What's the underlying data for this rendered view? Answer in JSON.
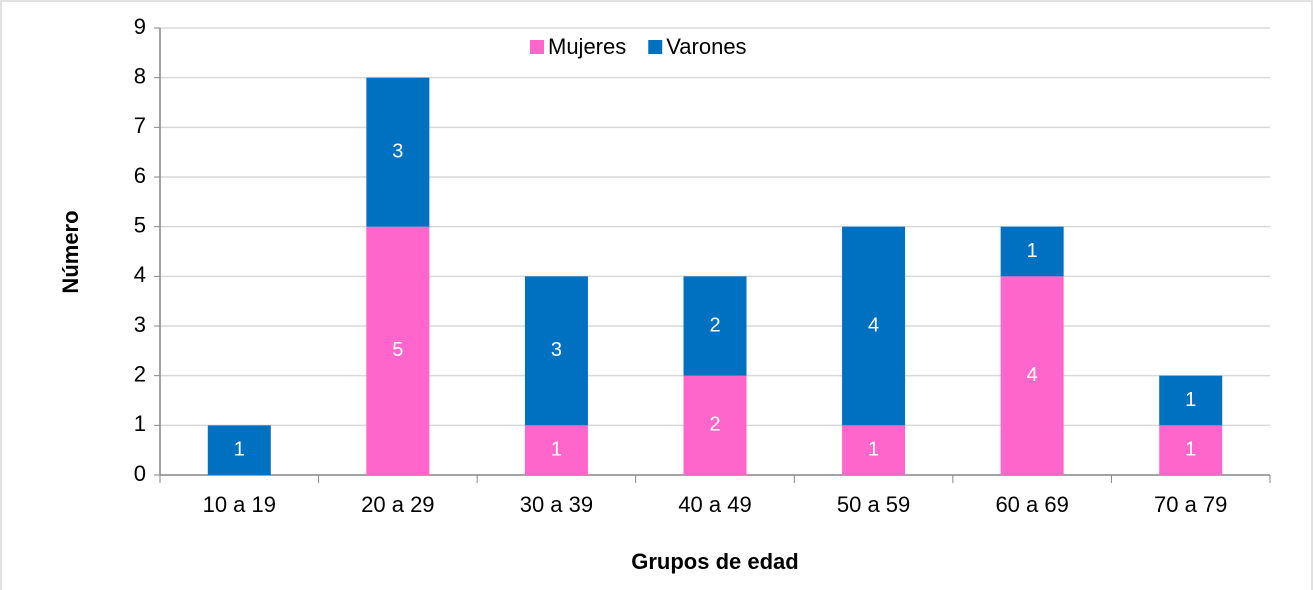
{
  "chart_data": {
    "type": "stacked-bar",
    "x_label": "Grupos de edad",
    "y_label": "Número",
    "categories": [
      "10 a 19",
      "20 a 29",
      "30 a 39",
      "40 a 49",
      "50 a 59",
      "60 a 69",
      "70 a 79"
    ],
    "series": [
      {
        "name": "Mujeres",
        "color": "#ff66cc",
        "values": [
          0,
          5,
          1,
          2,
          1,
          4,
          1
        ]
      },
      {
        "name": "Varones",
        "color": "#0070c0",
        "values": [
          1,
          3,
          3,
          2,
          4,
          1,
          1
        ]
      }
    ],
    "ylim": [
      0,
      9
    ],
    "yticks": [
      0,
      1,
      2,
      3,
      4,
      5,
      6,
      7,
      8,
      9
    ],
    "grid": true,
    "legend": "top"
  }
}
